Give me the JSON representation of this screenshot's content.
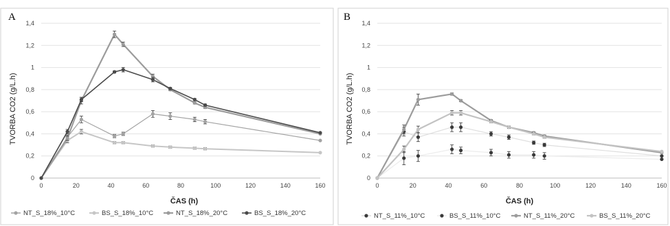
{
  "chart_data": [
    {
      "panel": "A",
      "type": "line",
      "ylabel": "TVORBA CO2 (g/L.h)",
      "xlabel": "ČAS (h)",
      "xlim": [
        0,
        160
      ],
      "ylim": [
        0,
        1.4
      ],
      "x_ticks": [
        "0",
        "20",
        "40",
        "60",
        "80",
        "100",
        "120",
        "140",
        "160"
      ],
      "y_ticks": [
        "0",
        "0,2",
        "0,4",
        "0,6",
        "0,8",
        "1",
        "1,2",
        "1,4"
      ],
      "grid": "horizontal",
      "legend_position": "bottom",
      "series": [
        {
          "name": "NT_S_18%_10°C",
          "color": "#a3a3a3",
          "width": 1.2,
          "x": [
            0,
            15,
            23,
            42,
            47,
            64,
            74,
            88,
            94,
            160
          ],
          "y": [
            0,
            0.37,
            0.53,
            0.38,
            0.4,
            0.58,
            0.56,
            0.53,
            0.51,
            0.34
          ],
          "err": [
            0,
            0.02,
            0.03,
            0.015,
            0.015,
            0.03,
            0.03,
            0.02,
            0.02,
            0
          ]
        },
        {
          "name": "BS_S_18%_10°C",
          "color": "#c6c6c6",
          "width": 2,
          "x": [
            0,
            15,
            23,
            42,
            47,
            64,
            74,
            88,
            94,
            160
          ],
          "y": [
            0,
            0.34,
            0.42,
            0.32,
            0.32,
            0.29,
            0.28,
            0.27,
            0.265,
            0.23
          ],
          "err": [
            0,
            0.02,
            0.02,
            0.01,
            0.01,
            0.01,
            0.01,
            0.01,
            0.01,
            0
          ]
        },
        {
          "name": "NT_S_18%_20°C",
          "color": "#9c9c9c",
          "width": 2.2,
          "x": [
            0,
            15,
            23,
            42,
            47,
            64,
            74,
            88,
            94,
            160
          ],
          "y": [
            0,
            0.36,
            0.7,
            1.3,
            1.21,
            0.92,
            0.8,
            0.68,
            0.64,
            0.4
          ],
          "err": [
            0,
            0.02,
            0.03,
            0.03,
            0.02,
            0.02,
            0.01,
            0.01,
            0.01,
            0
          ]
        },
        {
          "name": "BS_S_18%_20°C",
          "color": "#4a4a4a",
          "width": 1.6,
          "x": [
            0,
            15,
            23,
            42,
            47,
            64,
            74,
            88,
            94,
            160
          ],
          "y": [
            0,
            0.42,
            0.71,
            0.96,
            0.98,
            0.89,
            0.81,
            0.71,
            0.66,
            0.41
          ],
          "err": [
            0,
            0.02,
            0.02,
            0.01,
            0.02,
            0.02,
            0.01,
            0.01,
            0.01,
            0
          ]
        }
      ]
    },
    {
      "panel": "B",
      "type": "line",
      "ylabel": "TVORBA CO2 (g/L.h)",
      "xlabel": "ČAS (h)",
      "xlim": [
        0,
        160
      ],
      "ylim": [
        0,
        1.4
      ],
      "x_ticks": [
        "0",
        "20",
        "40",
        "60",
        "80",
        "100",
        "120",
        "140",
        "160"
      ],
      "y_ticks": [
        "0",
        "0,2",
        "0,4",
        "0,6",
        "0,8",
        "1",
        "1,2",
        "1,4"
      ],
      "grid": "horizontal",
      "legend_position": "bottom",
      "series": [
        {
          "name": "NT_S_11%_10°C",
          "color": "#3a3a3a",
          "width": 1.2,
          "line": "#dedede",
          "x": [
            0,
            15,
            23,
            42,
            47,
            64,
            74,
            88,
            94,
            160
          ],
          "y": [
            0,
            0.42,
            0.37,
            0.46,
            0.46,
            0.4,
            0.37,
            0.32,
            0.3,
            0.2
          ],
          "err": [
            0,
            0.04,
            0.04,
            0.04,
            0.04,
            0.02,
            0.02,
            0.015,
            0.015,
            0
          ]
        },
        {
          "name": "BS_S_11%_10°C",
          "color": "#3a3a3a",
          "width": 1.2,
          "line": "#ececec",
          "x": [
            0,
            15,
            23,
            42,
            47,
            64,
            74,
            88,
            94,
            160
          ],
          "y": [
            0,
            0.18,
            0.2,
            0.26,
            0.25,
            0.23,
            0.21,
            0.21,
            0.2,
            0.17
          ],
          "err": [
            0,
            0.06,
            0.05,
            0.04,
            0.03,
            0.03,
            0.03,
            0.03,
            0.03,
            0
          ]
        },
        {
          "name": "NT_S_11%_20°C",
          "color": "#9c9c9c",
          "width": 2.2,
          "x": [
            0,
            15,
            23,
            42,
            47,
            64,
            74,
            88,
            94,
            160
          ],
          "y": [
            0,
            0.44,
            0.71,
            0.76,
            0.7,
            0.52,
            0.46,
            0.41,
            0.38,
            0.23
          ],
          "err": [
            0,
            0.04,
            0.05,
            0.01,
            0.01,
            0.01,
            0.01,
            0.01,
            0.01,
            0
          ]
        },
        {
          "name": "BS_S_11%_20°C",
          "color": "#c3c3c3",
          "width": 2.2,
          "x": [
            0,
            15,
            23,
            42,
            47,
            64,
            74,
            88,
            94,
            160
          ],
          "y": [
            0,
            0.26,
            0.44,
            0.59,
            0.59,
            0.51,
            0.46,
            0.4,
            0.37,
            0.24
          ],
          "err": [
            0,
            0.03,
            0.03,
            0.02,
            0.02,
            0.01,
            0.01,
            0.01,
            0.01,
            0
          ]
        }
      ]
    }
  ]
}
